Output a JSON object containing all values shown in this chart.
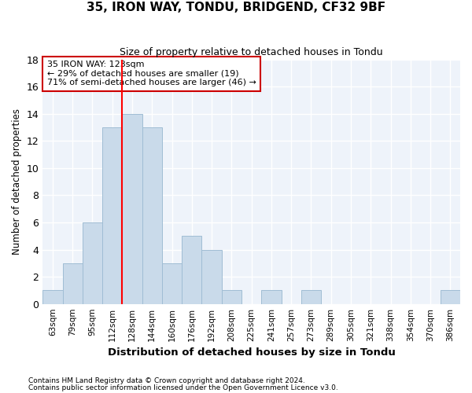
{
  "title": "35, IRON WAY, TONDU, BRIDGEND, CF32 9BF",
  "subtitle": "Size of property relative to detached houses in Tondu",
  "xlabel": "Distribution of detached houses by size in Tondu",
  "ylabel": "Number of detached properties",
  "bar_color": "#c9daea",
  "bar_edge_color": "#a0bdd4",
  "categories": [
    "63sqm",
    "79sqm",
    "95sqm",
    "112sqm",
    "128sqm",
    "144sqm",
    "160sqm",
    "176sqm",
    "192sqm",
    "208sqm",
    "225sqm",
    "241sqm",
    "257sqm",
    "273sqm",
    "289sqm",
    "305sqm",
    "321sqm",
    "338sqm",
    "354sqm",
    "370sqm",
    "386sqm"
  ],
  "values": [
    1,
    3,
    6,
    13,
    14,
    13,
    3,
    5,
    4,
    1,
    0,
    1,
    0,
    1,
    0,
    0,
    0,
    0,
    0,
    0,
    1
  ],
  "ylim": [
    0,
    18
  ],
  "yticks": [
    0,
    2,
    4,
    6,
    8,
    10,
    12,
    14,
    16,
    18
  ],
  "vline_bin_index": 4.0,
  "annotation_line1": "35 IRON WAY: 123sqm",
  "annotation_line2": "← 29% of detached houses are smaller (19)",
  "annotation_line3": "71% of semi-detached houses are larger (46) →",
  "footnote1": "Contains HM Land Registry data © Crown copyright and database right 2024.",
  "footnote2": "Contains public sector information licensed under the Open Government Licence v3.0.",
  "background_color": "#ffffff",
  "plot_bg_color": "#eef3fa",
  "grid_color": "#ffffff",
  "annotation_box_color": "#cc0000"
}
